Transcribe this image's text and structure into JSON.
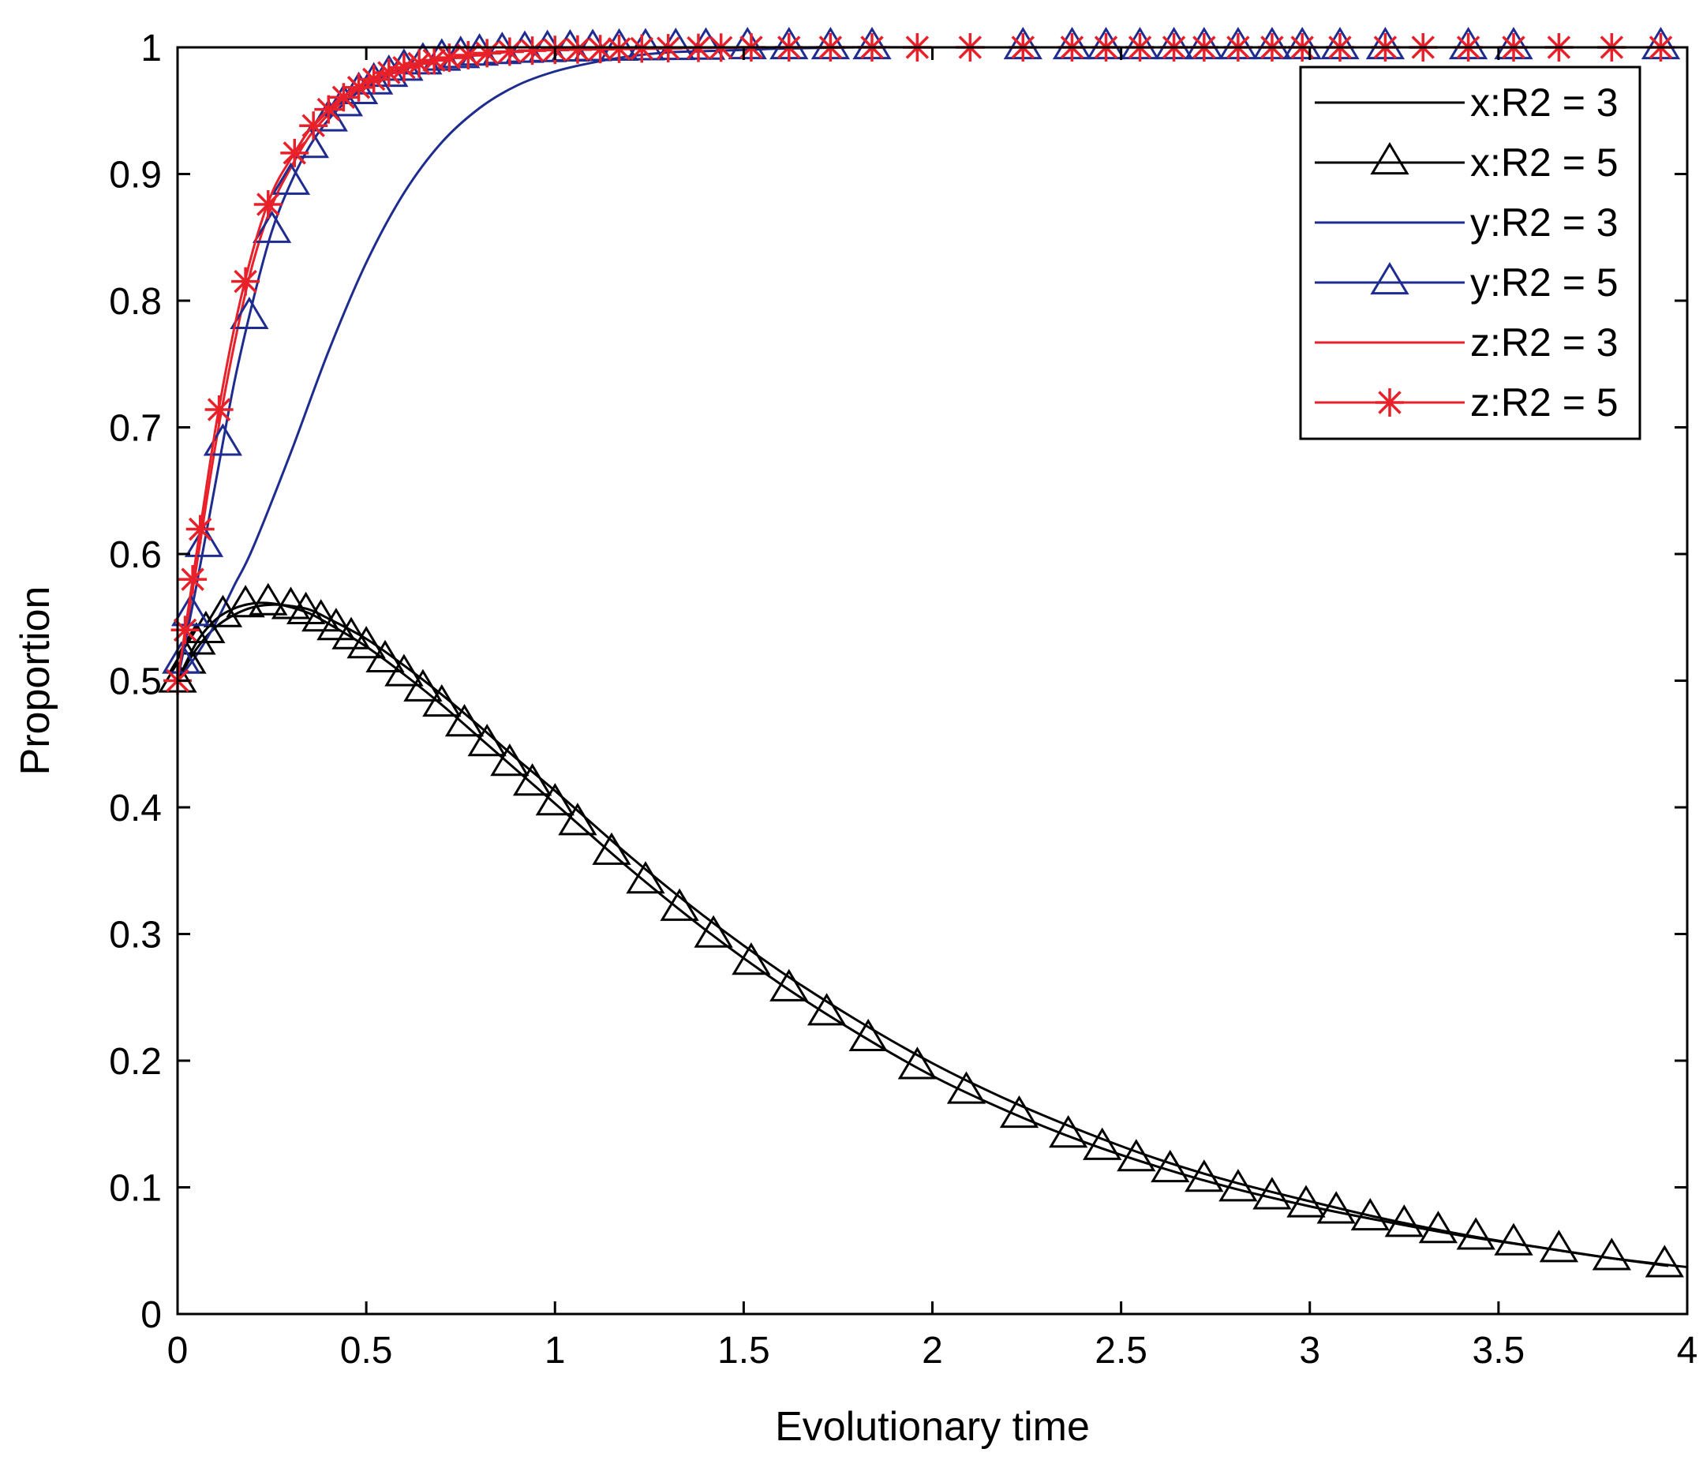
{
  "chart_data": {
    "type": "line",
    "title": "",
    "xlabel": "Evolutionary time",
    "ylabel": "Proportion",
    "xlim": [
      0,
      4
    ],
    "ylim": [
      0,
      1
    ],
    "xticks": [
      0,
      0.5,
      1,
      1.5,
      2,
      2.5,
      3,
      3.5,
      4
    ],
    "xtick_labels": [
      "0",
      "0.5",
      "1",
      "1.5",
      "2",
      "2.5",
      "3",
      "3.5",
      "4"
    ],
    "yticks": [
      0,
      0.1,
      0.2,
      0.3,
      0.4,
      0.5,
      0.6,
      0.7,
      0.8,
      0.9,
      1
    ],
    "ytick_labels": [
      "0",
      "0.1",
      "0.2",
      "0.3",
      "0.4",
      "0.5",
      "0.6",
      "0.7",
      "0.8",
      "0.9",
      "1"
    ],
    "legend_position": "top-right",
    "series": [
      {
        "name": "x:R2 = 3",
        "color": "#000000",
        "marker": "none",
        "x": [
          0,
          0.05,
          0.1,
          0.15,
          0.2,
          0.25,
          0.3,
          0.35,
          0.4,
          0.5,
          0.6,
          0.7,
          0.8,
          0.9,
          1.0,
          1.2,
          1.4,
          1.6,
          1.8,
          2.0,
          2.2,
          2.4,
          2.6,
          2.8,
          3.0,
          3.2,
          3.4,
          3.6,
          3.8,
          4.0
        ],
        "y": [
          0.5,
          0.525,
          0.542,
          0.552,
          0.558,
          0.56,
          0.559,
          0.556,
          0.549,
          0.533,
          0.512,
          0.489,
          0.464,
          0.438,
          0.413,
          0.361,
          0.313,
          0.27,
          0.232,
          0.198,
          0.169,
          0.144,
          0.122,
          0.104,
          0.089,
          0.075,
          0.063,
          0.053,
          0.044,
          0.037
        ]
      },
      {
        "name": "x:R2 = 5",
        "color": "#000000",
        "marker": "triangle",
        "x": [
          0,
          0.05,
          0.1,
          0.15,
          0.2,
          0.25,
          0.3,
          0.35,
          0.4,
          0.5,
          0.6,
          0.7,
          0.8,
          0.9,
          1.0,
          1.2,
          1.4,
          1.6,
          1.8,
          2.0,
          2.2,
          2.4,
          2.6,
          2.8,
          3.0,
          3.2,
          3.4,
          3.6,
          3.8,
          3.95
        ],
        "y": [
          0.5,
          0.53,
          0.548,
          0.557,
          0.561,
          0.561,
          0.558,
          0.553,
          0.545,
          0.527,
          0.505,
          0.481,
          0.455,
          0.429,
          0.403,
          0.351,
          0.303,
          0.26,
          0.222,
          0.188,
          0.16,
          0.136,
          0.116,
          0.099,
          0.085,
          0.073,
          0.062,
          0.053,
          0.044,
          0.038
        ],
        "marker_x": [
          0,
          0.025,
          0.05,
          0.075,
          0.12,
          0.18,
          0.24,
          0.3,
          0.34,
          0.38,
          0.42,
          0.46,
          0.5,
          0.55,
          0.6,
          0.65,
          0.7,
          0.76,
          0.82,
          0.88,
          0.94,
          1.0,
          1.06,
          1.15,
          1.24,
          1.33,
          1.42,
          1.52,
          1.62,
          1.72,
          1.83,
          1.96,
          2.09,
          2.23,
          2.36,
          2.45,
          2.54,
          2.63,
          2.72,
          2.81,
          2.9,
          2.99,
          3.07,
          3.16,
          3.25,
          3.34,
          3.44,
          3.54,
          3.66,
          3.8,
          3.94
        ]
      },
      {
        "name": "y:R2 = 3",
        "color": "#1F2C8F",
        "marker": "none",
        "x": [
          0,
          0.05,
          0.1,
          0.15,
          0.2,
          0.3,
          0.4,
          0.5,
          0.6,
          0.7,
          0.8,
          0.9,
          1.0,
          1.1,
          1.2,
          1.3,
          1.4,
          1.5,
          1.6,
          1.8,
          2.0,
          2.5,
          3.0,
          3.5,
          4.0
        ],
        "y": [
          0.5,
          0.52,
          0.545,
          0.575,
          0.605,
          0.68,
          0.76,
          0.83,
          0.885,
          0.925,
          0.952,
          0.97,
          0.981,
          0.988,
          0.993,
          0.996,
          0.997,
          0.998,
          0.999,
          1.0,
          1.0,
          1.0,
          1.0,
          1.0,
          1.0
        ]
      },
      {
        "name": "y:R2 = 5",
        "color": "#1F2C8F",
        "marker": "triangle",
        "x": [
          0,
          0.02,
          0.05,
          0.1,
          0.15,
          0.2,
          0.25,
          0.3,
          0.35,
          0.4,
          0.45,
          0.5,
          0.55,
          0.6,
          0.65,
          0.7,
          0.8,
          0.9,
          1.0,
          1.2,
          1.5,
          2.0,
          2.5,
          3.0,
          3.5,
          4.0
        ],
        "y": [
          0.5,
          0.53,
          0.575,
          0.655,
          0.735,
          0.8,
          0.855,
          0.893,
          0.922,
          0.943,
          0.958,
          0.969,
          0.977,
          0.983,
          0.988,
          0.991,
          0.995,
          0.997,
          0.998,
          0.999,
          1.0,
          1.0,
          1.0,
          1.0,
          1.0,
          1.0
        ],
        "marker_x": [
          0.01,
          0.035,
          0.07,
          0.12,
          0.19,
          0.25,
          0.3,
          0.35,
          0.4,
          0.44,
          0.48,
          0.52,
          0.56,
          0.6,
          0.65,
          0.7,
          0.75,
          0.8,
          0.86,
          0.92,
          0.98,
          1.04,
          1.1,
          1.17,
          1.24,
          1.32,
          1.4,
          1.51,
          1.62,
          1.73,
          1.84,
          2.24,
          2.37,
          2.46,
          2.55,
          2.64,
          2.72,
          2.81,
          2.9,
          2.98,
          3.08,
          3.2,
          3.42,
          3.54,
          3.93
        ]
      },
      {
        "name": "z:R2 = 3",
        "color": "#E8202A",
        "marker": "none",
        "x": [
          0,
          0.02,
          0.05,
          0.1,
          0.15,
          0.2,
          0.25,
          0.3,
          0.35,
          0.4,
          0.45,
          0.5,
          0.55,
          0.6,
          0.65,
          0.7,
          0.8,
          0.9,
          1.0,
          1.2,
          1.5,
          2.0,
          2.5,
          3.0,
          3.5,
          4.0
        ],
        "y": [
          0.5,
          0.535,
          0.59,
          0.685,
          0.765,
          0.83,
          0.875,
          0.905,
          0.93,
          0.947,
          0.96,
          0.97,
          0.977,
          0.983,
          0.987,
          0.99,
          0.994,
          0.997,
          0.998,
          0.999,
          1.0,
          1.0,
          1.0,
          1.0,
          1.0,
          1.0
        ]
      },
      {
        "name": "z:R2 = 5",
        "color": "#E8202A",
        "marker": "star",
        "x": [
          0,
          0.02,
          0.05,
          0.1,
          0.15,
          0.2,
          0.25,
          0.3,
          0.35,
          0.4,
          0.45,
          0.5,
          0.55,
          0.6,
          0.65,
          0.7,
          0.8,
          0.9,
          1.0,
          1.2,
          1.5,
          2.0,
          2.5,
          3.0,
          3.5,
          4.0
        ],
        "y": [
          0.5,
          0.54,
          0.6,
          0.698,
          0.778,
          0.84,
          0.885,
          0.912,
          0.935,
          0.951,
          0.963,
          0.972,
          0.979,
          0.984,
          0.988,
          0.991,
          0.995,
          0.997,
          0.998,
          0.999,
          1.0,
          1.0,
          1.0,
          1.0,
          1.0,
          1.0
        ],
        "marker_x": [
          0,
          0.02,
          0.04,
          0.06,
          0.11,
          0.18,
          0.24,
          0.31,
          0.36,
          0.4,
          0.44,
          0.48,
          0.52,
          0.56,
          0.6,
          0.64,
          0.68,
          0.72,
          0.77,
          0.82,
          0.88,
          0.94,
          1.0,
          1.06,
          1.12,
          1.17,
          1.23,
          1.3,
          1.38,
          1.44,
          1.52,
          1.62,
          1.73,
          1.84,
          1.96,
          2.1,
          2.24,
          2.37,
          2.46,
          2.55,
          2.64,
          2.72,
          2.81,
          2.9,
          2.98,
          3.08,
          3.2,
          3.3,
          3.42,
          3.54,
          3.66,
          3.8,
          3.93
        ]
      }
    ]
  }
}
